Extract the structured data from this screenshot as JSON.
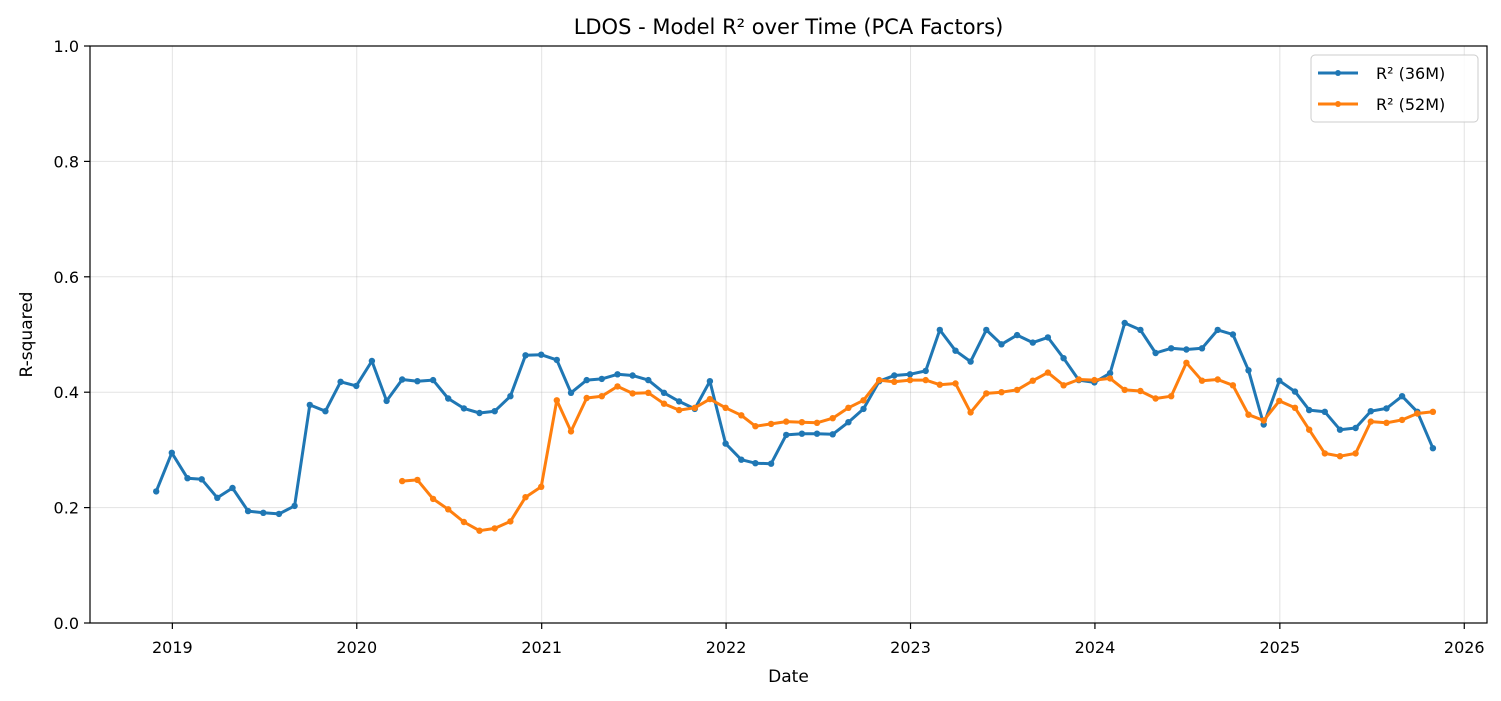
{
  "chart_data": {
    "type": "line",
    "title": "LDOS - Model R² over Time (PCA Factors)",
    "xlabel": "Date",
    "ylabel": "R-squared",
    "ylim": [
      0,
      1.0
    ],
    "xlim": [
      "2018-07-22",
      "2026-02-15"
    ],
    "x_ticks": [
      "2019",
      "2020",
      "2021",
      "2022",
      "2023",
      "2024",
      "2025",
      "2026"
    ],
    "y_ticks": [
      "0.0",
      "0.2",
      "0.4",
      "0.6",
      "0.8",
      "1.0"
    ],
    "grid": true,
    "legend_position": "top-right",
    "series": [
      {
        "name": "R² (36M)",
        "color": "#1f77b4",
        "x": [
          "2018-11-30",
          "2018-12-31",
          "2019-01-31",
          "2019-02-28",
          "2019-03-31",
          "2019-04-30",
          "2019-05-31",
          "2019-06-30",
          "2019-07-31",
          "2019-08-31",
          "2019-09-30",
          "2019-10-31",
          "2019-11-30",
          "2019-12-31",
          "2020-01-31",
          "2020-02-29",
          "2020-03-31",
          "2020-04-30",
          "2020-05-31",
          "2020-06-30",
          "2020-07-31",
          "2020-08-31",
          "2020-09-30",
          "2020-10-31",
          "2020-11-30",
          "2020-12-31",
          "2021-01-31",
          "2021-02-28",
          "2021-03-31",
          "2021-04-30",
          "2021-05-31",
          "2021-06-30",
          "2021-07-31",
          "2021-08-31",
          "2021-09-30",
          "2021-10-31",
          "2021-11-30",
          "2021-12-31",
          "2022-01-31",
          "2022-02-28",
          "2022-03-31",
          "2022-04-30",
          "2022-05-31",
          "2022-06-30",
          "2022-07-31",
          "2022-08-31",
          "2022-09-30",
          "2022-10-31",
          "2022-11-30",
          "2022-12-31",
          "2023-01-31",
          "2023-02-28",
          "2023-03-31",
          "2023-04-30",
          "2023-05-31",
          "2023-06-30",
          "2023-07-31",
          "2023-08-31",
          "2023-09-30",
          "2023-10-31",
          "2023-11-30",
          "2023-12-31",
          "2024-01-31",
          "2024-02-29",
          "2024-03-31",
          "2024-04-30",
          "2024-05-31",
          "2024-06-30",
          "2024-07-31",
          "2024-08-31",
          "2024-09-30",
          "2024-10-31",
          "2024-11-30",
          "2024-12-31",
          "2025-01-31",
          "2025-02-28",
          "2025-03-31",
          "2025-04-30",
          "2025-05-31",
          "2025-06-30",
          "2025-07-31",
          "2025-08-31",
          "2025-09-30",
          "2025-10-31"
        ],
        "values": [
          0.228,
          0.295,
          0.251,
          0.249,
          0.217,
          0.234,
          0.194,
          0.191,
          0.189,
          0.203,
          0.378,
          0.367,
          0.418,
          0.411,
          0.454,
          0.385,
          0.422,
          0.419,
          0.421,
          0.389,
          0.372,
          0.364,
          0.367,
          0.393,
          0.464,
          0.465,
          0.456,
          0.399,
          0.421,
          0.423,
          0.431,
          0.429,
          0.421,
          0.399,
          0.384,
          0.371,
          0.419,
          0.311,
          0.283,
          0.277,
          0.276,
          0.326,
          0.328,
          0.328,
          0.327,
          0.348,
          0.371,
          0.419,
          0.429,
          0.431,
          0.437,
          0.508,
          0.472,
          0.453,
          0.508,
          0.483,
          0.499,
          0.486,
          0.495,
          0.459,
          0.421,
          0.417,
          0.433,
          0.52,
          0.508,
          0.468,
          0.476,
          0.474,
          0.476,
          0.508,
          0.5,
          0.438,
          0.344,
          0.42,
          0.401,
          0.369,
          0.366,
          0.335,
          0.338,
          0.367,
          0.372,
          0.393,
          0.366,
          0.303
        ]
      },
      {
        "name": "R² (52M)",
        "color": "#ff7f0e",
        "x": [
          "2020-03-31",
          "2020-04-30",
          "2020-05-31",
          "2020-06-30",
          "2020-07-31",
          "2020-08-31",
          "2020-09-30",
          "2020-10-31",
          "2020-11-30",
          "2020-12-31",
          "2021-01-31",
          "2021-02-28",
          "2021-03-31",
          "2021-04-30",
          "2021-05-31",
          "2021-06-30",
          "2021-07-31",
          "2021-08-31",
          "2021-09-30",
          "2021-10-31",
          "2021-11-30",
          "2021-12-31",
          "2022-01-31",
          "2022-02-28",
          "2022-03-31",
          "2022-04-30",
          "2022-05-31",
          "2022-06-30",
          "2022-07-31",
          "2022-08-31",
          "2022-09-30",
          "2022-10-31",
          "2022-11-30",
          "2022-12-31",
          "2023-01-31",
          "2023-02-28",
          "2023-03-31",
          "2023-04-30",
          "2023-05-31",
          "2023-06-30",
          "2023-07-31",
          "2023-08-31",
          "2023-09-30",
          "2023-10-31",
          "2023-11-30",
          "2023-12-31",
          "2024-01-31",
          "2024-02-29",
          "2024-03-31",
          "2024-04-30",
          "2024-05-31",
          "2024-06-30",
          "2024-07-31",
          "2024-08-31",
          "2024-09-30",
          "2024-10-31",
          "2024-11-30",
          "2024-12-31",
          "2025-01-31",
          "2025-02-28",
          "2025-03-31",
          "2025-04-30",
          "2025-05-31",
          "2025-06-30",
          "2025-07-31",
          "2025-08-31",
          "2025-09-30",
          "2025-10-31"
        ],
        "values": [
          0.246,
          0.248,
          0.215,
          0.197,
          0.175,
          0.16,
          0.164,
          0.176,
          0.218,
          0.236,
          0.386,
          0.332,
          0.39,
          0.393,
          0.41,
          0.398,
          0.399,
          0.38,
          0.369,
          0.373,
          0.388,
          0.373,
          0.36,
          0.341,
          0.345,
          0.349,
          0.348,
          0.347,
          0.355,
          0.373,
          0.386,
          0.421,
          0.418,
          0.421,
          0.421,
          0.413,
          0.415,
          0.365,
          0.398,
          0.4,
          0.404,
          0.42,
          0.434,
          0.412,
          0.422,
          0.421,
          0.424,
          0.404,
          0.402,
          0.389,
          0.393,
          0.451,
          0.42,
          0.422,
          0.412,
          0.361,
          0.351,
          0.385,
          0.373,
          0.335,
          0.294,
          0.289,
          0.294,
          0.349,
          0.347,
          0.352,
          0.363,
          0.366
        ]
      }
    ]
  }
}
